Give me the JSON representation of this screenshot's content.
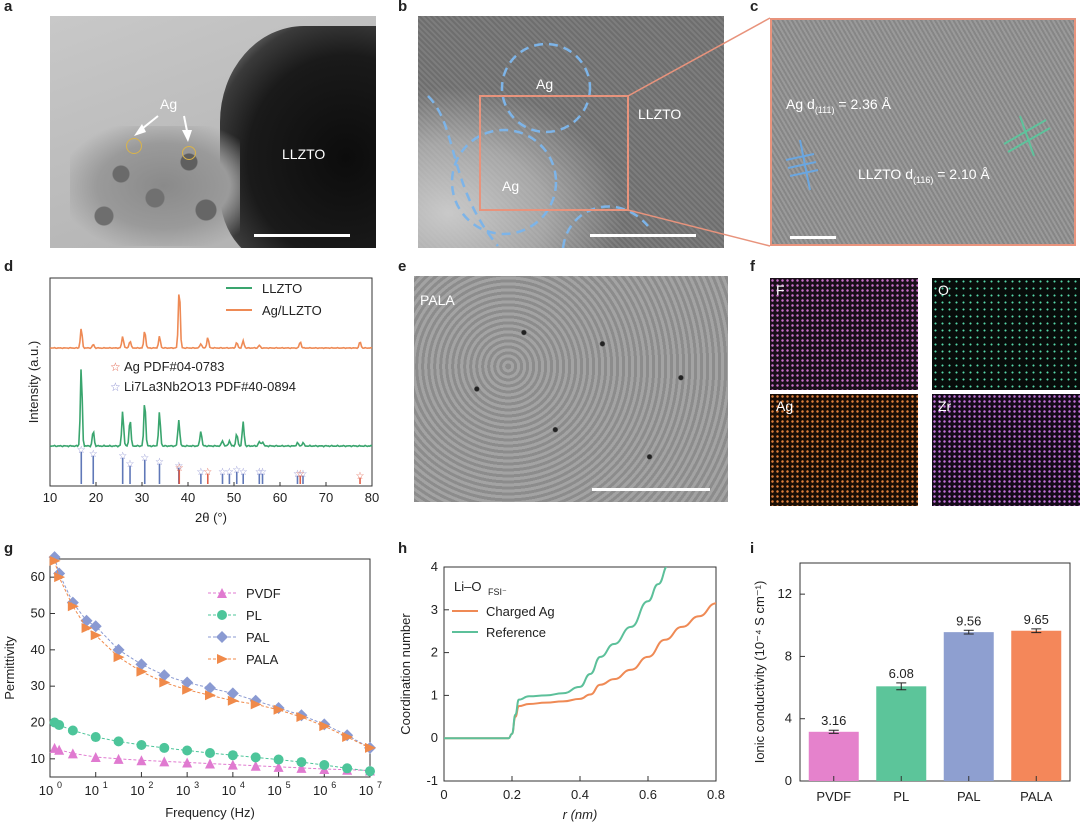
{
  "panel_labels": [
    "a",
    "b",
    "c",
    "d",
    "e",
    "f",
    "g",
    "h",
    "i"
  ],
  "a": {
    "ag": "Ag",
    "llzto": "LLZTO"
  },
  "b": {
    "ag1": "Ag",
    "ag2": "Ag",
    "llzto": "LLZTO"
  },
  "c": {
    "ag_d": "Ag d",
    "ag_sub": "(111)",
    "ag_val": " = 2.36 Å",
    "llzto_d": "LLZTO d",
    "llzto_sub": "(116)",
    "llzto_val": " = 2.10 Å"
  },
  "e": {
    "label": "PALA"
  },
  "f": {
    "maps": [
      "F",
      "O",
      "Ag",
      "Zr"
    ],
    "colors": [
      "#c86ec8",
      "#55d6a8",
      "#e0803c",
      "#c070d8"
    ]
  },
  "chart_data": [
    {
      "type": "line",
      "panel": "d",
      "xlabel": "2θ (°)",
      "ylabel": "Intensity (a.u.)",
      "xlim": [
        10,
        80
      ],
      "xticks": [
        10,
        20,
        30,
        40,
        50,
        60,
        70,
        80
      ],
      "series": [
        {
          "name": "LLZTO",
          "color": "#3aa56e"
        },
        {
          "name": "Ag/LLZTO",
          "color": "#ee8a55"
        }
      ],
      "reference_legend": [
        {
          "name": "Ag PDF#04-0783",
          "color": "#e0604a"
        },
        {
          "name": "Li7La3Nb2O13 PDF#40-0894",
          "color": "#7080c0"
        }
      ],
      "ag_refs": [
        38.1,
        44.3,
        64.4,
        77.4
      ],
      "llzto_refs": [
        16.8,
        19.4,
        25.8,
        27.4,
        30.6,
        33.8,
        38.0,
        42.8,
        47.5,
        49.0,
        50.6,
        52.0,
        55.5,
        56.2,
        63.8,
        65.0
      ]
    },
    {
      "type": "line",
      "panel": "g",
      "xlabel": "Frequency (Hz)",
      "ylabel": "Permittivity",
      "xlim": [
        "10^0",
        "10^7"
      ],
      "ylim": [
        5,
        65
      ],
      "xticks": [
        "10^0",
        "10^1",
        "10^2",
        "10^3",
        "10^4",
        "10^5",
        "10^6",
        "10^7"
      ],
      "yticks": [
        10,
        20,
        30,
        40,
        50,
        60
      ],
      "log_x": true,
      "series": [
        {
          "name": "PVDF",
          "color": "#e07ad0",
          "marker": "triangle-up",
          "logx": [
            0.1,
            0.2,
            0.5,
            1,
            1.5,
            2,
            2.5,
            3,
            3.5,
            4,
            4.5,
            5,
            5.5,
            6,
            6.5,
            7
          ],
          "values": [
            13.0,
            12.5,
            11.5,
            10.5,
            10.0,
            9.6,
            9.3,
            9.0,
            8.7,
            8.4,
            8.1,
            7.8,
            7.5,
            7.2,
            7.0,
            6.8
          ]
        },
        {
          "name": "PL",
          "color": "#4dc59a",
          "marker": "circle",
          "logx": [
            0.1,
            0.2,
            0.5,
            1,
            1.5,
            2,
            2.5,
            3,
            3.5,
            4,
            4.5,
            5,
            5.5,
            6,
            6.5,
            7
          ],
          "values": [
            20.0,
            19.3,
            17.8,
            16.0,
            14.8,
            13.8,
            13.0,
            12.3,
            11.6,
            11.0,
            10.4,
            9.8,
            9.1,
            8.3,
            7.4,
            6.6
          ]
        },
        {
          "name": "PAL",
          "color": "#8a9ad2",
          "marker": "diamond",
          "logx": [
            0.1,
            0.2,
            0.5,
            0.8,
            1,
            1.5,
            2,
            2.5,
            3,
            3.5,
            4,
            4.5,
            5,
            5.5,
            6,
            6.5,
            7
          ],
          "values": [
            65.5,
            61,
            53,
            48,
            46.5,
            40,
            36,
            33,
            31,
            29.5,
            28,
            26,
            24,
            22,
            19.5,
            16.5,
            13
          ]
        },
        {
          "name": "PALA",
          "color": "#f08a4a",
          "marker": "triangle-right",
          "logx": [
            0.1,
            0.2,
            0.5,
            0.8,
            1,
            1.5,
            2,
            2.5,
            3,
            3.5,
            4,
            4.5,
            5,
            5.5,
            6,
            6.5,
            7
          ],
          "values": [
            64.5,
            60,
            52,
            46,
            44,
            38,
            34,
            31,
            29,
            27.5,
            26,
            25,
            23.5,
            21.5,
            19,
            16,
            13
          ]
        }
      ]
    },
    {
      "type": "line",
      "panel": "h",
      "xlabel": "r (nm)",
      "ylabel": "Coordination number",
      "xlim": [
        0,
        0.8
      ],
      "ylim": [
        -1,
        4
      ],
      "xticks": [
        0,
        0.2,
        0.4,
        0.6,
        0.8
      ],
      "yticks": [
        -1,
        0,
        1,
        2,
        3,
        4
      ],
      "legend_title": "Li–O",
      "legend_title_sub": "FSI⁻",
      "series": [
        {
          "name": "Charged Ag",
          "color": "#ef8a55",
          "x": [
            0,
            0.19,
            0.2,
            0.21,
            0.22,
            0.25,
            0.3,
            0.35,
            0.4,
            0.43,
            0.46,
            0.5,
            0.55,
            0.6,
            0.65,
            0.7,
            0.75,
            0.8
          ],
          "values": [
            0,
            0,
            0.1,
            0.5,
            0.75,
            0.8,
            0.83,
            0.86,
            0.92,
            1.02,
            1.25,
            1.38,
            1.6,
            1.9,
            2.3,
            2.6,
            2.85,
            3.15
          ]
        },
        {
          "name": "Reference",
          "color": "#5cc09a",
          "x": [
            0,
            0.19,
            0.2,
            0.21,
            0.22,
            0.25,
            0.3,
            0.35,
            0.4,
            0.43,
            0.46,
            0.5,
            0.55,
            0.6,
            0.63,
            0.66
          ],
          "values": [
            0,
            0,
            0.1,
            0.55,
            0.9,
            0.98,
            1.0,
            1.05,
            1.2,
            1.5,
            1.9,
            2.2,
            2.6,
            3.2,
            3.6,
            4.05
          ]
        }
      ]
    },
    {
      "type": "bar",
      "panel": "i",
      "categories": [
        "PVDF",
        "PL",
        "PAL",
        "PALA"
      ],
      "values": [
        3.16,
        6.08,
        9.56,
        9.65
      ],
      "errors": [
        0.1,
        0.22,
        0.12,
        0.12
      ],
      "labels": [
        "3.16",
        "6.08",
        "9.56",
        "9.65"
      ],
      "colors": [
        "#e582cc",
        "#5cc59a",
        "#8e9fd0",
        "#f4875a"
      ],
      "ylabel": "Ionic conductivity (10⁻⁴ S cm⁻¹)",
      "ylim": [
        0,
        14
      ],
      "yticks": [
        0,
        4,
        8,
        12
      ]
    }
  ]
}
